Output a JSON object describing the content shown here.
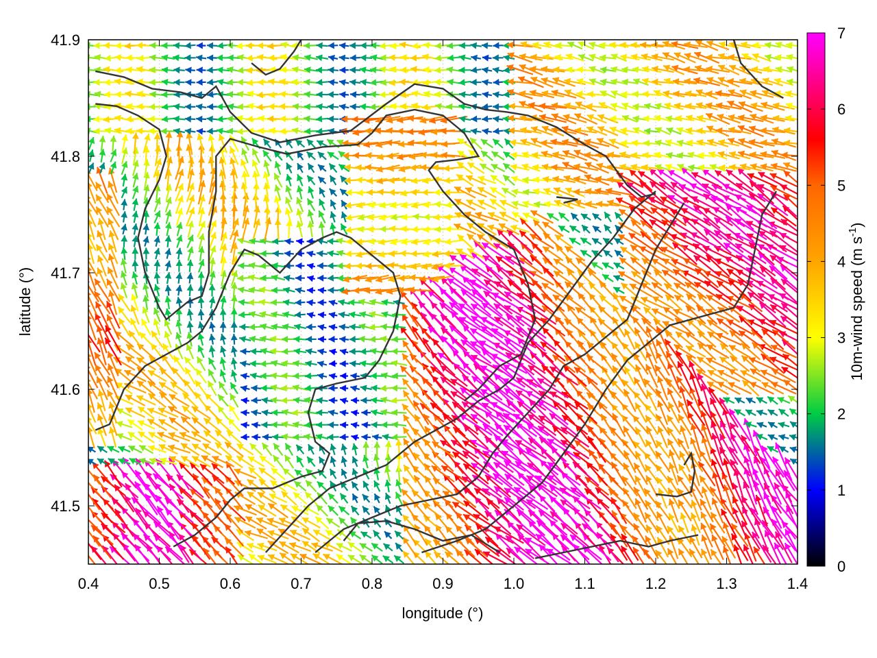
{
  "chart_data": {
    "type": "vector-field",
    "xlabel": "longitude (°)",
    "ylabel": "latitude (°)",
    "xlim": [
      0.4,
      1.4
    ],
    "ylim": [
      41.45,
      41.9
    ],
    "x_ticks": [
      "0.4",
      "0.5",
      "0.6",
      "0.7",
      "0.8",
      "0.9",
      "1.0",
      "1.1",
      "1.2",
      "1.3",
      "1.4"
    ],
    "x_tick_values": [
      0.4,
      0.5,
      0.6,
      0.7,
      0.8,
      0.9,
      1.0,
      1.1,
      1.2,
      1.3,
      1.4
    ],
    "y_ticks": [
      "41.5",
      "41.6",
      "41.7",
      "41.8",
      "41.9"
    ],
    "y_tick_values": [
      41.5,
      41.6,
      41.7,
      41.8,
      41.9
    ],
    "colorbar": {
      "label_main": "10m-wind speed (m s",
      "label_sup": "-1",
      "label_end": ")",
      "range": [
        0,
        7
      ],
      "ticks": [
        "0",
        "1",
        "2",
        "3",
        "4",
        "5",
        "6",
        "7"
      ],
      "tick_values": [
        0,
        1,
        2,
        3,
        4,
        5,
        6,
        7
      ],
      "colormap": [
        "#000000",
        "#0000ff",
        "#00cc44",
        "#ffff00",
        "#ffa500",
        "#ff0000",
        "#ff00ff"
      ]
    },
    "grid": true,
    "grid_style": "dotted",
    "contours": [
      [
        [
          0.41,
          41.873
        ],
        [
          0.45,
          41.868
        ],
        [
          0.49,
          41.858
        ],
        [
          0.53,
          41.855
        ],
        [
          0.56,
          41.85
        ],
        [
          0.58,
          41.86
        ],
        [
          0.6,
          41.838
        ],
        [
          0.63,
          41.82
        ],
        [
          0.67,
          41.812
        ],
        [
          0.72,
          41.818
        ],
        [
          0.77,
          41.822
        ],
        [
          0.82,
          41.845
        ],
        [
          0.86,
          41.862
        ],
        [
          0.9,
          41.858
        ],
        [
          0.93,
          41.845
        ],
        [
          0.96,
          41.84
        ],
        [
          0.99,
          41.838
        ],
        [
          1.02,
          41.835
        ],
        [
          1.06,
          41.825
        ],
        [
          1.1,
          41.81
        ],
        [
          1.13,
          41.8
        ],
        [
          1.16,
          41.775
        ],
        [
          1.18,
          41.765
        ],
        [
          1.2,
          41.768
        ]
      ],
      [
        [
          0.41,
          41.845
        ],
        [
          0.44,
          41.843
        ],
        [
          0.47,
          41.835
        ],
        [
          0.5,
          41.823
        ],
        [
          0.51,
          41.8
        ],
        [
          0.5,
          41.78
        ],
        [
          0.48,
          41.755
        ],
        [
          0.47,
          41.73
        ],
        [
          0.48,
          41.7
        ],
        [
          0.5,
          41.67
        ],
        [
          0.51,
          41.66
        ],
        [
          0.54,
          41.675
        ],
        [
          0.56,
          41.68
        ],
        [
          0.57,
          41.7
        ],
        [
          0.57,
          41.735
        ],
        [
          0.58,
          41.77
        ],
        [
          0.58,
          41.8
        ],
        [
          0.6,
          41.815
        ],
        [
          0.64,
          41.808
        ],
        [
          0.68,
          41.802
        ],
        [
          0.73,
          41.808
        ],
        [
          0.78,
          41.81
        ],
        [
          0.8,
          41.82
        ],
        [
          0.82,
          41.835
        ],
        [
          0.86,
          41.84
        ],
        [
          0.9,
          41.835
        ],
        [
          0.93,
          41.82
        ],
        [
          0.95,
          41.8
        ],
        [
          0.92,
          41.797
        ],
        [
          0.89,
          41.795
        ],
        [
          0.88,
          41.788
        ],
        [
          0.9,
          41.77
        ],
        [
          0.93,
          41.75
        ],
        [
          0.96,
          41.735
        ],
        [
          1.0,
          41.72
        ],
        [
          1.02,
          41.69
        ],
        [
          1.03,
          41.66
        ],
        [
          1.01,
          41.63
        ],
        [
          0.98,
          41.62
        ],
        [
          0.95,
          41.6
        ],
        [
          0.93,
          41.59
        ]
      ],
      [
        [
          0.41,
          41.565
        ],
        [
          0.43,
          41.57
        ],
        [
          0.45,
          41.6
        ],
        [
          0.48,
          41.62
        ],
        [
          0.51,
          41.63
        ],
        [
          0.54,
          41.64
        ],
        [
          0.56,
          41.65
        ],
        [
          0.58,
          41.67
        ],
        [
          0.6,
          41.7
        ],
        [
          0.62,
          41.72
        ],
        [
          0.64,
          41.715
        ],
        [
          0.67,
          41.7
        ],
        [
          0.7,
          41.72
        ],
        [
          0.73,
          41.73
        ],
        [
          0.75,
          41.735
        ],
        [
          0.77,
          41.73
        ],
        [
          0.8,
          41.715
        ],
        [
          0.83,
          41.7
        ],
        [
          0.84,
          41.68
        ],
        [
          0.83,
          41.65
        ],
        [
          0.81,
          41.625
        ],
        [
          0.79,
          41.61
        ],
        [
          0.75,
          41.605
        ],
        [
          0.72,
          41.6
        ],
        [
          0.71,
          41.58
        ],
        [
          0.72,
          41.555
        ],
        [
          0.74,
          41.545
        ],
        [
          0.73,
          41.53
        ],
        [
          0.7,
          41.525
        ],
        [
          0.66,
          41.515
        ],
        [
          0.62,
          41.515
        ],
        [
          0.6,
          41.505
        ],
        [
          0.58,
          41.49
        ],
        [
          0.55,
          41.475
        ],
        [
          0.52,
          41.465
        ]
      ],
      [
        [
          0.65,
          41.46
        ],
        [
          0.68,
          41.48
        ],
        [
          0.71,
          41.5
        ],
        [
          0.74,
          41.515
        ],
        [
          0.78,
          41.525
        ],
        [
          0.82,
          41.535
        ],
        [
          0.86,
          41.555
        ],
        [
          0.89,
          41.565
        ],
        [
          0.92,
          41.575
        ],
        [
          0.95,
          41.59
        ],
        [
          0.98,
          41.6
        ],
        [
          1.0,
          41.61
        ],
        [
          1.02,
          41.64
        ],
        [
          1.05,
          41.66
        ],
        [
          1.08,
          41.685
        ],
        [
          1.11,
          41.71
        ],
        [
          1.14,
          41.73
        ],
        [
          1.17,
          41.755
        ],
        [
          1.2,
          41.77
        ]
      ],
      [
        [
          0.72,
          41.46
        ],
        [
          0.76,
          41.48
        ],
        [
          0.8,
          41.49
        ],
        [
          0.84,
          41.5
        ],
        [
          0.88,
          41.505
        ],
        [
          0.92,
          41.51
        ],
        [
          0.95,
          41.525
        ],
        [
          0.97,
          41.545
        ],
        [
          0.99,
          41.56
        ],
        [
          1.02,
          41.58
        ],
        [
          1.05,
          41.6
        ],
        [
          1.07,
          41.62
        ],
        [
          1.1,
          41.63
        ],
        [
          1.13,
          41.645
        ],
        [
          1.16,
          41.66
        ],
        [
          1.18,
          41.69
        ],
        [
          1.2,
          41.72
        ],
        [
          1.22,
          41.74
        ],
        [
          1.24,
          41.76
        ]
      ],
      [
        [
          0.87,
          41.46
        ],
        [
          0.92,
          41.47
        ],
        [
          0.96,
          41.48
        ],
        [
          1.0,
          41.5
        ],
        [
          1.04,
          41.52
        ],
        [
          1.07,
          41.545
        ],
        [
          1.1,
          41.57
        ],
        [
          1.13,
          41.6
        ],
        [
          1.16,
          41.625
        ],
        [
          1.19,
          41.64
        ],
        [
          1.22,
          41.655
        ],
        [
          1.25,
          41.66
        ],
        [
          1.28,
          41.665
        ],
        [
          1.31,
          41.67
        ],
        [
          1.33,
          41.69
        ],
        [
          1.34,
          41.72
        ],
        [
          1.35,
          41.75
        ],
        [
          1.37,
          41.77
        ]
      ],
      [
        [
          1.03,
          41.455
        ],
        [
          1.07,
          41.46
        ],
        [
          1.11,
          41.465
        ],
        [
          1.15,
          41.47
        ],
        [
          1.19,
          41.465
        ],
        [
          1.22,
          41.47
        ],
        [
          1.26,
          41.475
        ]
      ],
      [
        [
          1.2,
          41.51
        ],
        [
          1.23,
          41.508
        ],
        [
          1.25,
          41.512
        ],
        [
          1.255,
          41.53
        ],
        [
          1.25,
          41.545
        ],
        [
          1.24,
          41.535
        ]
      ],
      [
        [
          0.76,
          41.47
        ],
        [
          0.78,
          41.485
        ],
        [
          0.82,
          41.487
        ],
        [
          0.86,
          41.48
        ],
        [
          0.9,
          41.47
        ],
        [
          0.94,
          41.475
        ],
        [
          0.98,
          41.46
        ]
      ],
      [
        [
          0.63,
          41.88
        ],
        [
          0.65,
          41.87
        ],
        [
          0.67,
          41.875
        ],
        [
          0.69,
          41.89
        ],
        [
          0.7,
          41.9
        ]
      ],
      [
        [
          1.06,
          41.765
        ],
        [
          1.09,
          41.763
        ],
        [
          1.07,
          41.76
        ]
      ],
      [
        [
          1.31,
          41.9
        ],
        [
          1.32,
          41.88
        ],
        [
          1.35,
          41.86
        ],
        [
          1.38,
          41.85
        ]
      ]
    ]
  }
}
